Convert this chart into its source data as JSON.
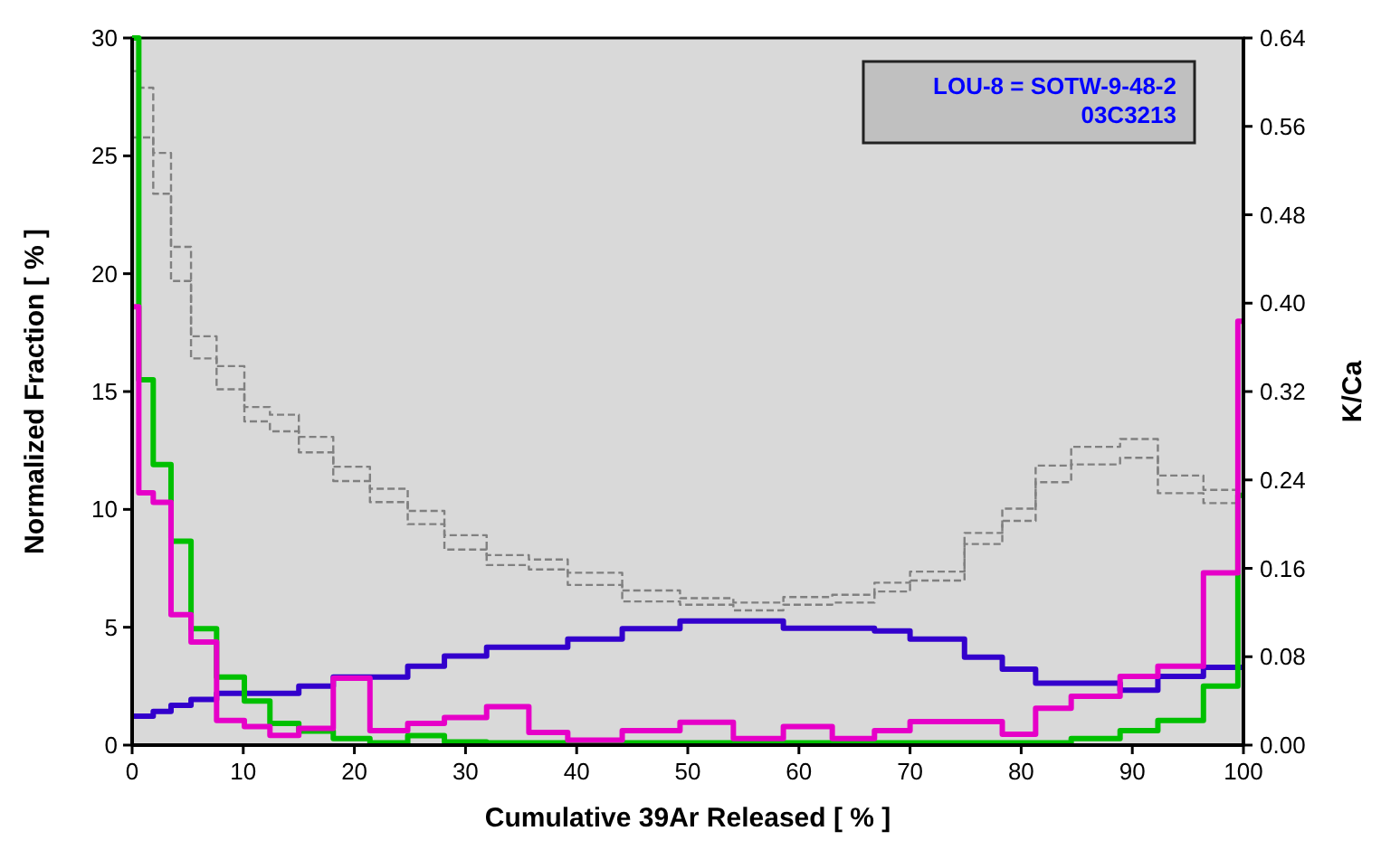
{
  "chart_data": {
    "type": "step",
    "xlabel": "Cumulative 39Ar Released [ % ]",
    "ylabel": "Normalized Fraction [ % ]",
    "y2label": "K/Ca",
    "x": [
      0,
      0.6,
      1.9,
      3.5,
      5.3,
      7.6,
      10.1,
      12.4,
      15.0,
      18.1,
      21.4,
      24.8,
      28.1,
      31.9,
      35.7,
      39.2,
      44.1,
      49.3,
      54.1,
      58.6,
      63.0,
      66.8,
      70.0,
      74.9,
      78.3,
      81.3,
      84.5,
      88.9,
      92.3,
      96.4,
      99.5
    ],
    "xlim": [
      0,
      100
    ],
    "xticks": [
      0,
      10,
      20,
      30,
      40,
      50,
      60,
      70,
      80,
      90,
      100
    ],
    "ylim": [
      0,
      30
    ],
    "yticks": [
      0,
      5,
      10,
      15,
      20,
      25,
      30
    ],
    "y2lim": [
      0,
      0.64
    ],
    "y2ticks": [
      {
        "value": 0,
        "label": "0.00"
      },
      {
        "value": 0.08,
        "label": "0.08"
      },
      {
        "value": 0.16,
        "label": "0.16"
      },
      {
        "value": 0.24,
        "label": "0.24"
      },
      {
        "value": 0.32,
        "label": "0.32"
      },
      {
        "value": 0.4,
        "label": "0.40"
      },
      {
        "value": 0.48,
        "label": "0.48"
      },
      {
        "value": 0.56,
        "label": "0.56"
      },
      {
        "value": 0.64,
        "label": "0.64"
      }
    ],
    "grid": false,
    "line_style": "solid",
    "annotations": [
      "LOU-8 = SOTW-9-48-2\n03C3213"
    ],
    "series": [
      {
        "color": "#808080",
        "axis": "y2",
        "line_style": "dashed",
        "values": [
          0.61,
          0.595,
          0.536,
          0.451,
          0.37,
          0.343,
          0.306,
          0.299,
          0.279,
          0.252,
          0.232,
          0.212,
          0.19,
          0.172,
          0.168,
          0.156,
          0.14,
          0.133,
          0.129,
          0.134,
          0.136,
          0.147,
          0.157,
          0.192,
          0.214,
          0.253,
          0.27,
          0.277,
          0.244,
          0.231,
          0.231
        ]
      },
      {
        "color": "#808080",
        "axis": "y2",
        "line_style": "dashed",
        "values": [
          0.55,
          0.55,
          0.499,
          0.42,
          0.35,
          0.322,
          0.293,
          0.284,
          0.265,
          0.239,
          0.22,
          0.2,
          0.177,
          0.163,
          0.159,
          0.145,
          0.13,
          0.127,
          0.122,
          0.127,
          0.129,
          0.139,
          0.149,
          0.182,
          0.203,
          0.238,
          0.254,
          0.26,
          0.228,
          0.219,
          0.219
        ]
      },
      {
        "color": "#3300cc",
        "values": [
          1.23,
          1.23,
          1.43,
          1.69,
          1.94,
          2.2,
          2.2,
          2.2,
          2.5,
          2.89,
          2.89,
          3.35,
          3.78,
          4.15,
          4.15,
          4.5,
          4.94,
          5.27,
          5.27,
          4.96,
          4.96,
          4.84,
          4.5,
          3.73,
          3.22,
          2.63,
          2.63,
          2.33,
          2.92,
          3.3,
          3.3
        ]
      },
      {
        "color": "#00c000",
        "values": [
          30,
          15.5,
          11.9,
          8.65,
          4.94,
          2.89,
          1.87,
          0.92,
          0.59,
          0.28,
          0.1,
          0.4,
          0.13,
          0.1,
          0.1,
          0.1,
          0.1,
          0.1,
          0.1,
          0.1,
          0.1,
          0.1,
          0.1,
          0.1,
          0.1,
          0.1,
          0.28,
          0.61,
          1.05,
          2.5,
          10.6
        ]
      },
      {
        "color": "#e600c8",
        "values": [
          18.6,
          10.7,
          10.3,
          5.53,
          4.37,
          1.05,
          0.79,
          0.41,
          0.71,
          2.84,
          0.61,
          0.92,
          1.17,
          1.63,
          0.54,
          0.21,
          0.61,
          0.97,
          0.28,
          0.79,
          0.28,
          0.61,
          1.0,
          1.0,
          0.46,
          1.56,
          2.07,
          2.92,
          3.35,
          7.31,
          17.98
        ]
      }
    ]
  }
}
